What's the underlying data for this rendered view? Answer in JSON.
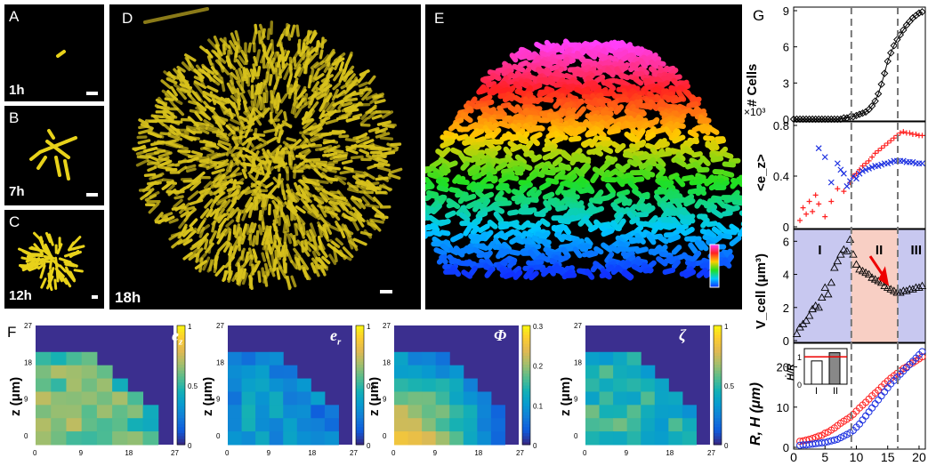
{
  "panels": {
    "A": {
      "label": "A",
      "time": "1h"
    },
    "B": {
      "label": "B",
      "time": "7h"
    },
    "C": {
      "label": "C",
      "time": "12h"
    },
    "D": {
      "label": "D",
      "time": "18h"
    },
    "E": {
      "label": "E"
    },
    "F": {
      "label": "F"
    },
    "G": {
      "label": "G"
    }
  },
  "colors": {
    "yellow": "#e8d21a",
    "heat_bg": "#3b2f8f",
    "red": "#ff2020",
    "blue": "#1a2ee0"
  },
  "heatmaps": [
    {
      "symbol": "e",
      "sub": "z",
      "cbar_ticks": [
        "1",
        "0.5",
        "0"
      ]
    },
    {
      "symbol": "e",
      "sub": "r",
      "cbar_ticks": [
        "1",
        "0.5",
        "0"
      ]
    },
    {
      "symbol": "Φ",
      "sub": "",
      "cbar_ticks": [
        "0.3",
        "0.2",
        "0.1",
        "0"
      ]
    },
    {
      "symbol": "ζ",
      "sub": "",
      "cbar_ticks": [
        "1",
        "0.5",
        "0"
      ]
    }
  ],
  "heat_axes": {
    "x_ticks": [
      "0",
      "9",
      "18",
      "27"
    ],
    "y_ticks": [
      "27",
      "18",
      "9",
      "0"
    ],
    "ylabel": "z (μm)"
  },
  "chart_data": [
    {
      "type": "scatter",
      "ylabel": "# Cells",
      "multiplier": "×10³",
      "ylim": [
        0,
        9
      ],
      "yticks": [
        "9",
        "6",
        "3",
        "0"
      ],
      "x": [
        0,
        0.5,
        1,
        1.5,
        2,
        2.5,
        3,
        3.5,
        4,
        4.5,
        5,
        5.5,
        6,
        6.5,
        7,
        7.5,
        8,
        8.5,
        9,
        9.5,
        10,
        10.5,
        11,
        11.5,
        12,
        12.5,
        13,
        13.5,
        14,
        14.5,
        15,
        15.5,
        16,
        16.5,
        17,
        17.5,
        18,
        18.5,
        19,
        19.5,
        20,
        20.5
      ],
      "values": [
        0,
        0,
        0,
        0,
        0,
        0,
        0,
        0,
        0,
        0,
        0,
        0,
        0,
        0,
        0,
        0,
        0.1,
        0.1,
        0.2,
        0.2,
        0.3,
        0.4,
        0.5,
        0.6,
        0.8,
        1.1,
        1.5,
        2.1,
        2.9,
        3.8,
        4.8,
        5.5,
        6.1,
        6.6,
        7.0,
        7.4,
        7.8,
        8.1,
        8.4,
        8.6,
        8.8,
        8.9
      ]
    },
    {
      "type": "scatter",
      "ylabel": "<e_z>",
      "ylim": [
        0,
        0.8
      ],
      "yticks": [
        "0.8",
        "0.4",
        "0"
      ],
      "series": [
        {
          "marker": "+",
          "color": "red",
          "x": [
            1,
            1.5,
            2,
            2.5,
            3,
            3.5,
            4,
            5,
            6,
            7,
            8,
            9,
            9.5,
            10,
            10.5,
            11,
            11.5,
            12,
            12.5,
            13,
            13.5,
            14,
            14.5,
            15,
            15.5,
            16,
            16.5,
            17,
            17.5,
            18,
            18.5,
            19,
            19.5,
            20,
            20.5
          ],
          "values": [
            0.05,
            0.15,
            0.1,
            0.2,
            0.12,
            0.25,
            0.18,
            0.08,
            0.2,
            0.3,
            0.28,
            0.35,
            0.4,
            0.42,
            0.45,
            0.48,
            0.5,
            0.52,
            0.55,
            0.58,
            0.6,
            0.62,
            0.64,
            0.66,
            0.68,
            0.7,
            0.72,
            0.74,
            0.75,
            0.74,
            0.74,
            0.73,
            0.73,
            0.72,
            0.72
          ]
        },
        {
          "marker": "x",
          "color": "blue",
          "x": [
            4,
            5,
            6,
            7,
            7.5,
            8,
            8.5,
            9,
            9.5,
            10,
            10.5,
            11,
            11.5,
            12,
            12.5,
            13,
            13.5,
            14,
            14.5,
            15,
            15.5,
            16,
            16.5,
            17,
            17.5,
            18,
            18.5,
            19,
            19.5,
            20,
            20.5
          ],
          "values": [
            0.62,
            0.55,
            0.35,
            0.5,
            0.45,
            0.42,
            0.32,
            0.36,
            0.4,
            0.38,
            0.42,
            0.44,
            0.45,
            0.46,
            0.47,
            0.48,
            0.48,
            0.49,
            0.5,
            0.5,
            0.51,
            0.52,
            0.52,
            0.52,
            0.52,
            0.51,
            0.51,
            0.51,
            0.5,
            0.5,
            0.5
          ]
        }
      ]
    },
    {
      "type": "scatter",
      "ylabel": "V_cell (μm³)",
      "ylim": [
        0,
        6.5
      ],
      "yticks": [
        "6",
        "4",
        "2",
        "0"
      ],
      "regions": [
        "I",
        "II",
        "III"
      ],
      "region_bounds": [
        9.2,
        16.6
      ],
      "x": [
        0.5,
        1,
        1.5,
        2,
        2.5,
        3,
        3.5,
        4,
        4.5,
        5,
        5.5,
        6,
        6.5,
        7,
        7.5,
        8,
        8.5,
        9,
        9.5,
        10,
        10.5,
        11,
        11.5,
        12,
        12.5,
        13,
        13.5,
        14,
        14.5,
        15,
        15.5,
        16,
        16.5,
        17,
        17.5,
        18,
        18.5,
        19,
        19.5,
        20,
        20.5
      ],
      "values": [
        0.4,
        0.8,
        1.0,
        1.2,
        1.5,
        1.9,
        2.1,
        2.0,
        2.6,
        3.2,
        2.8,
        3.5,
        4.4,
        4.8,
        5.2,
        5.5,
        5.4,
        6.1,
        5.2,
        4.6,
        4.3,
        4.2,
        4.1,
        4.0,
        3.8,
        3.7,
        3.6,
        3.5,
        3.3,
        3.2,
        3.1,
        3.0,
        2.9,
        2.9,
        3.0,
        3.0,
        3.1,
        3.1,
        3.2,
        3.2,
        3.3
      ]
    },
    {
      "type": "scatter",
      "ylabel": "R, H (μm)",
      "ylim": [
        0,
        25
      ],
      "yticks": [
        "20",
        "10",
        "0"
      ],
      "xlim": [
        0,
        21
      ],
      "xticks": [
        "0",
        "5",
        "10",
        "15",
        "20"
      ],
      "series": [
        {
          "name": "R",
          "color": "red",
          "x": [
            1,
            1.5,
            2,
            2.5,
            3,
            3.5,
            4,
            4.5,
            5,
            5.5,
            6,
            6.5,
            7,
            7.5,
            8,
            8.5,
            9,
            9.5,
            10,
            10.5,
            11,
            11.5,
            12,
            12.5,
            13,
            13.5,
            14,
            14.5,
            15,
            15.5,
            16,
            16.5,
            17,
            17.5,
            18,
            18.5,
            19,
            19.5,
            20,
            20.5
          ],
          "values": [
            1.5,
            1.6,
            1.8,
            2.0,
            2.2,
            2.5,
            2.8,
            3.0,
            3.5,
            3.8,
            4.3,
            4.8,
            5.4,
            6.0,
            6.5,
            7.0,
            7.5,
            8.2,
            9.0,
            9.8,
            10.5,
            11.2,
            12,
            12.8,
            13.5,
            14.2,
            15,
            15.8,
            16.5,
            17.2,
            17.8,
            18.4,
            19,
            19.6,
            20,
            20.6,
            21,
            21.5,
            22,
            22.5
          ]
        },
        {
          "name": "H",
          "color": "blue",
          "x": [
            1,
            1.5,
            2,
            2.5,
            3,
            3.5,
            4,
            4.5,
            5,
            5.5,
            6,
            6.5,
            7,
            7.5,
            8,
            8.5,
            9,
            9.5,
            10,
            10.5,
            11,
            11.5,
            12,
            12.5,
            13,
            13.5,
            14,
            14.5,
            15,
            15.5,
            16,
            16.5,
            17,
            17.5,
            18,
            18.5,
            19,
            19.5,
            20,
            20.5
          ],
          "values": [
            0.5,
            0.6,
            0.6,
            0.7,
            0.8,
            0.9,
            1.0,
            1.1,
            1.2,
            1.4,
            1.6,
            1.8,
            2.0,
            2.4,
            2.8,
            3.2,
            3.6,
            4.2,
            5.0,
            5.8,
            6.8,
            7.8,
            8.8,
            9.8,
            10.8,
            11.8,
            12.8,
            13.8,
            14.8,
            15.8,
            16.6,
            17.4,
            18.2,
            19,
            19.8,
            20.6,
            21.4,
            22.2,
            23,
            23.8
          ]
        }
      ],
      "inset": {
        "ylabel": "Ḣ/Ṙ",
        "yticks": [
          "1",
          "0"
        ],
        "categories": [
          "I",
          "II"
        ],
        "values": [
          0.85,
          1.15
        ]
      }
    }
  ],
  "dashed_lines_x": [
    9.2,
    16.6
  ]
}
